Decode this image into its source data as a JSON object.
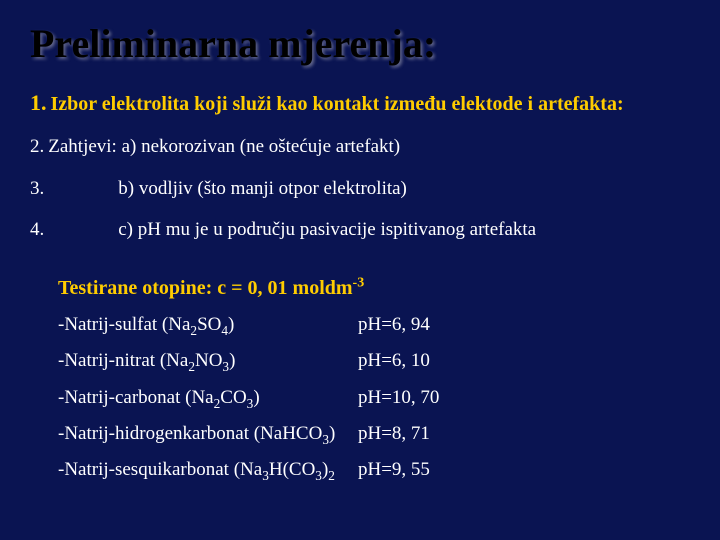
{
  "title": "Preliminarna mjerenja:",
  "points": {
    "p1_num": "1.",
    "p1_text": "Izbor elektrolita koji služi kao kontakt između elektode i artefakta:",
    "p2_num": "2.",
    "p2_text": "Zahtjevi: a) nekorozivan (ne oštećuje artefakt)",
    "p3_num": "3.",
    "p3_text": "b) vodljiv (što manji otpor elektrolita)",
    "p4_num": "4.",
    "p4_text": "c) pH mu je u području pasivacije ispitivanog artefakta"
  },
  "solutions_header": {
    "prefix": "Testirane otopine: c = 0, 01 moldm",
    "sup": "-3"
  },
  "solutions": [
    {
      "name_pre": "-Natrij-sulfat (Na",
      "sub1": "2",
      "mid": "SO",
      "sub2": "4",
      "suffix": ")",
      "ph": "pH=6, 94"
    },
    {
      "name_pre": "-Natrij-nitrat (Na",
      "sub1": "2",
      "mid": "NO",
      "sub2": "3",
      "suffix": ")",
      "ph": "pH=6, 10"
    },
    {
      "name_pre": "-Natrij-carbonat (Na",
      "sub1": "2",
      "mid": "CO",
      "sub2": "3",
      "suffix": ")",
      "ph": "pH=10, 70"
    },
    {
      "name_pre": "-Natrij-hidrogenkarbonat (NaHCO",
      "sub1": "",
      "mid": "",
      "sub2": "3",
      "suffix": ")",
      "ph": "pH=8, 71"
    },
    {
      "name_pre": "-Natrij-sesquikarbonat (Na",
      "sub1": "3",
      "mid": "H(CO",
      "sub2": "3",
      "suffix": ")",
      "subEnd": "2",
      "ph": "pH=9, 55"
    }
  ],
  "colors": {
    "background": "#0a1452",
    "title": "#000000",
    "accent": "#ffcc00",
    "text": "#ffffff"
  }
}
